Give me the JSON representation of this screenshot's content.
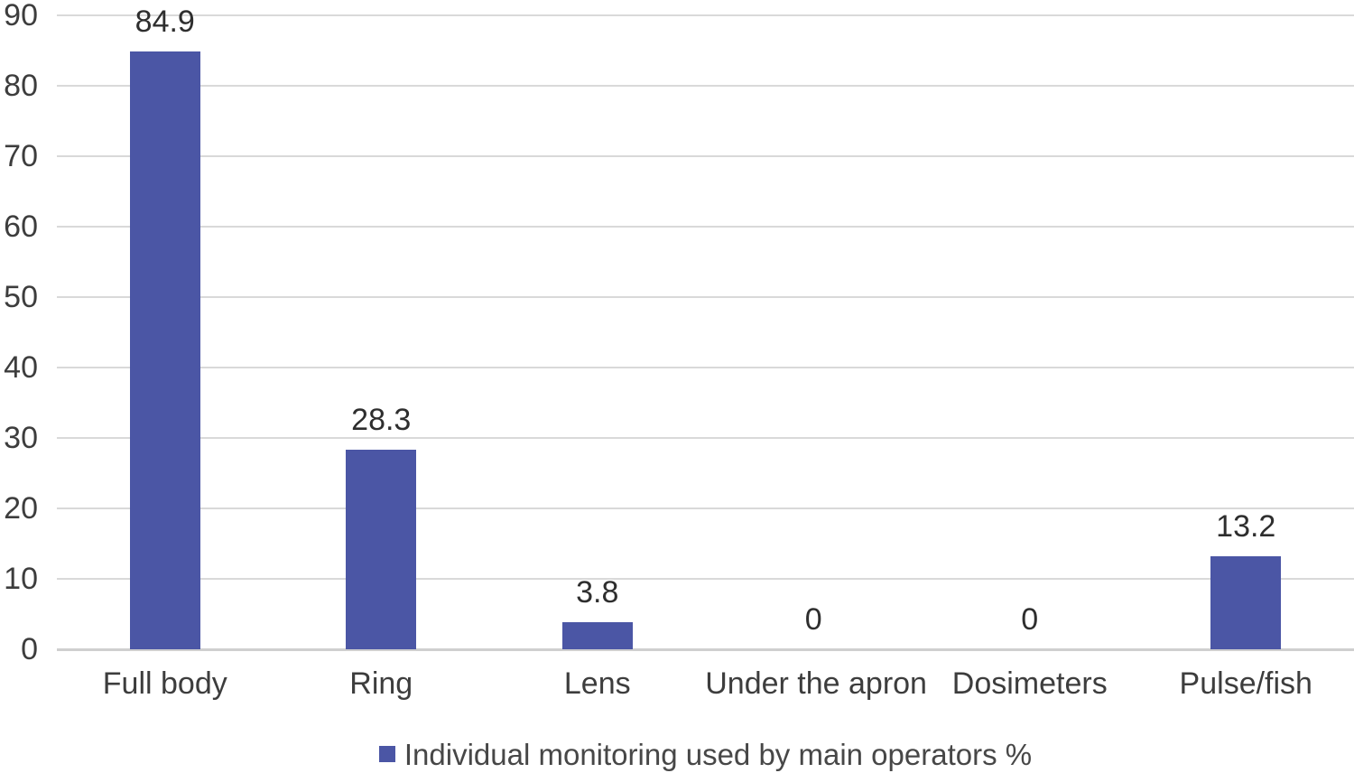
{
  "chart_data": {
    "type": "bar",
    "categories": [
      "Full body",
      "Ring",
      "Lens",
      "Under the apron",
      "Dosimeters",
      "Pulse/fish"
    ],
    "values": [
      84.9,
      28.3,
      3.8,
      0,
      0,
      13.2
    ],
    "value_labels": [
      "84.9",
      "28.3",
      "3.8",
      "0",
      "0",
      "13.2"
    ],
    "title": "",
    "xlabel": "",
    "ylabel": "",
    "ylim": [
      0,
      90
    ],
    "yticks": [
      0,
      10,
      20,
      30,
      40,
      50,
      60,
      70,
      80,
      90
    ],
    "grid": true,
    "legend_position": "bottom"
  },
  "legend": {
    "label": "Individual monitoring used by main operators %",
    "marker_color": "#4b56a5"
  },
  "colors": {
    "bar": "#4b56a5",
    "gridline": "#d9d9d9",
    "axis_line": "#cfcfcf",
    "tick_text": "#3d3d3d",
    "data_label_text": "#2e2e2e",
    "legend_text": "#474747",
    "background": "#ffffff"
  }
}
